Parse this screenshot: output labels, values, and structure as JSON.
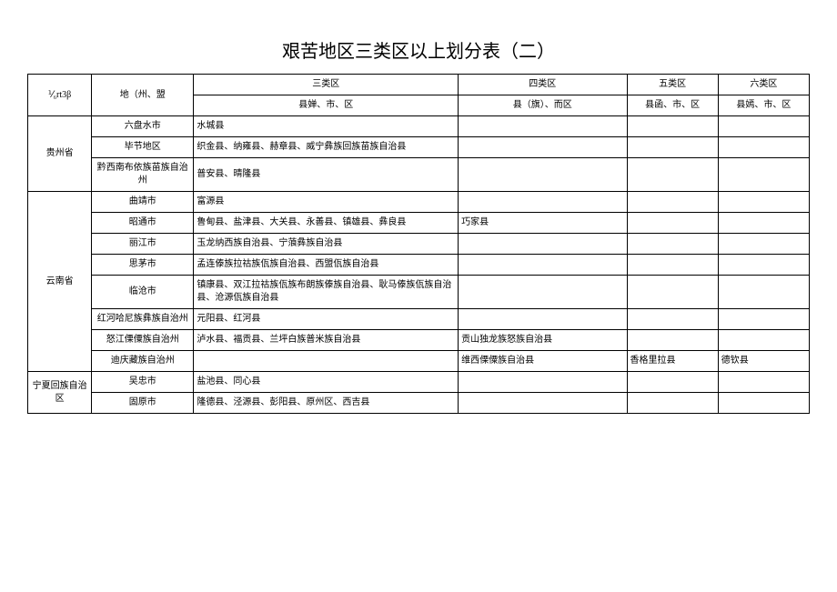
{
  "title": "艰苦地区三类区以上划分表（二）",
  "header": {
    "col1": "⅟₆rt3β",
    "col2": "地（州、盟",
    "cat3_top": "三类区",
    "cat3_sub": "县婵、市、区",
    "cat4_top": "四类区",
    "cat4_sub": "县（旗）、而区",
    "cat5_top": "五类区",
    "cat5_sub": "县函、市、区",
    "cat6_top": "六类区",
    "cat6_sub": "县嫣、市、区"
  },
  "rows": [
    {
      "prov": "贵州省",
      "provSpan": 3,
      "city": "六盘水市",
      "c3": "水城县",
      "c4": "",
      "c5": "",
      "c6": ""
    },
    {
      "city": "毕节地区",
      "c3": "织金县、纳雍县、赫章县、威宁彝族回族苗族自治县",
      "c4": "",
      "c5": "",
      "c6": ""
    },
    {
      "city": "黔西南布依族苗族自治州",
      "c3": "普安县、晴隆县",
      "c4": "",
      "c5": "",
      "c6": ""
    },
    {
      "prov": "云南省",
      "provSpan": 8,
      "city": "曲靖市",
      "c3": "富源县",
      "c4": "",
      "c5": "",
      "c6": ""
    },
    {
      "city": "昭通市",
      "c3": "鲁甸县、盐津县、大关县、永善县、镇雄县、彝良县",
      "c4": "巧家县",
      "c5": "",
      "c6": ""
    },
    {
      "city": "丽江市",
      "c3": "玉龙纳西族自治县、宁蒗彝族自治县",
      "c4": "",
      "c5": "",
      "c6": ""
    },
    {
      "city": "思茅市",
      "c3": "孟连傣族拉祜族佤族自治县、西盟佤族自治县",
      "c4": "",
      "c5": "",
      "c6": ""
    },
    {
      "city": "临沧市",
      "c3": "镇康县、双江拉祜族佤族布朗族傣族自治县、耿马傣族佤族自治县、沧源佤族自治县",
      "c4": "",
      "c5": "",
      "c6": ""
    },
    {
      "city": "红河哈尼族彝族自治州",
      "c3": "元阳县、红河县",
      "c4": "",
      "c5": "",
      "c6": ""
    },
    {
      "city": "怒江傈僳族自治州",
      "c3": "泸水县、福贡县、兰坪白族普米族自治县",
      "c4": "贡山独龙族怒族自治县",
      "c5": "",
      "c6": ""
    },
    {
      "city": "迪庆藏族自治州",
      "c3": "",
      "c4": "维西傈僳族自治县",
      "c5": "香格里拉县",
      "c6": "德钦县"
    },
    {
      "prov": "宁夏回族自治区",
      "provSpan": 2,
      "city": "吴忠市",
      "c3": "盐池县、同心县",
      "c4": "",
      "c5": "",
      "c6": ""
    },
    {
      "city": "固原市",
      "c3": "隆德县、泾源县、彭阳县、原州区、西吉县",
      "c4": "",
      "c5": "",
      "c6": ""
    }
  ],
  "style": {
    "background": "#ffffff",
    "border_color": "#000000",
    "title_fontsize": 20,
    "cell_fontsize": 10
  }
}
